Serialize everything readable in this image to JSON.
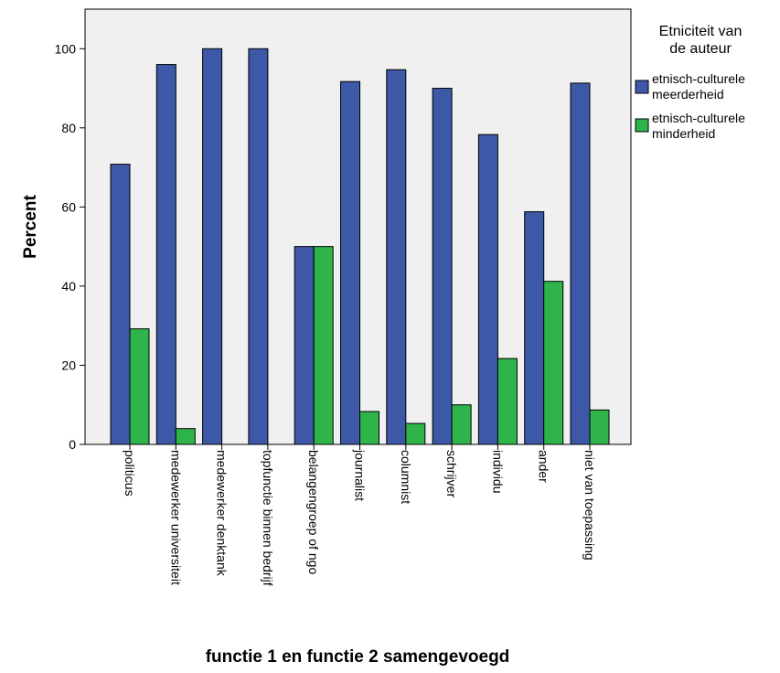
{
  "chart_data": {
    "type": "bar",
    "xlabel": "functie 1 en functie 2 samengevoegd",
    "ylabel": "Percent",
    "ylim": [
      0,
      110
    ],
    "yticks": [
      0,
      20,
      40,
      60,
      80,
      100
    ],
    "grid": false,
    "legend": {
      "title_line1": "Etniciteit van",
      "title_line2": "de auteur",
      "placement": "right"
    },
    "categories": [
      "politicus",
      "medewerker universiteit",
      "medewerker denktank",
      "topfunctie binnen bedrijf",
      "belangengroep of ngo",
      "journalist",
      "columnist",
      "schrijver",
      "individu",
      "ander",
      "niet van toepassing"
    ],
    "series": [
      {
        "name_line1": "etnisch-culturele",
        "name_line2": "meerderheid",
        "color": "#3d58a7",
        "values": [
          70.8,
          96.0,
          100.0,
          100.0,
          50.0,
          91.7,
          94.7,
          90.0,
          78.3,
          58.8,
          91.3
        ]
      },
      {
        "name_line1": "etnisch-culturele",
        "name_line2": "minderheid",
        "color": "#2fb44a",
        "values": [
          29.2,
          4.0,
          0.0,
          0.0,
          50.0,
          8.3,
          5.3,
          10.0,
          21.7,
          41.2,
          8.7
        ]
      }
    ],
    "colors": {
      "plot_background": "#f0f0f0",
      "axis": "#000000"
    }
  }
}
